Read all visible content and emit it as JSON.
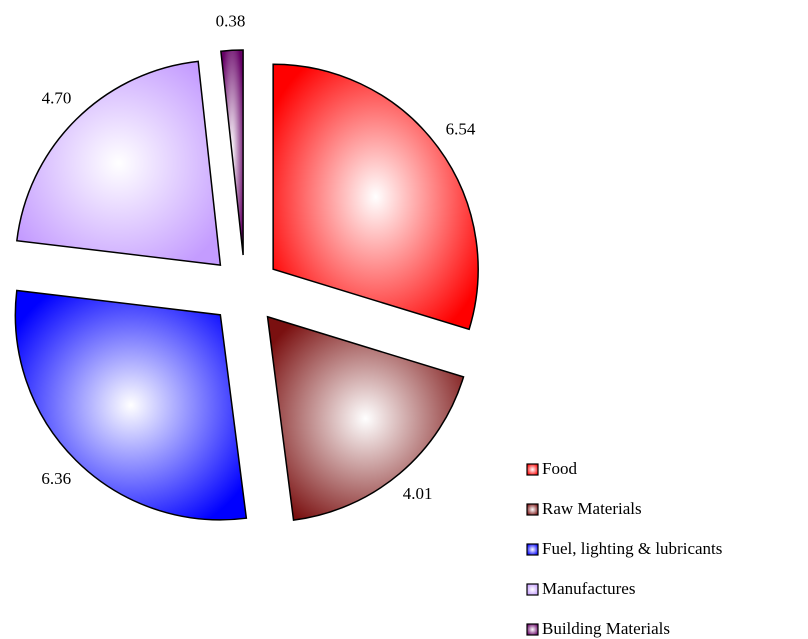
{
  "chart_data": {
    "type": "pie",
    "categories": [
      "Food",
      "Raw Materials",
      "Fuel, lighting & lubricants",
      "Manufactures",
      "Building Materials"
    ],
    "values": [
      6.54,
      4.01,
      6.36,
      4.7,
      0.38
    ],
    "value_labels": [
      "6.54",
      "4.01",
      "6.36",
      "4.70",
      "0.38"
    ],
    "colors": [
      "#ff0000",
      "#7a1010",
      "#0000ff",
      "#c49cff",
      "#660066"
    ],
    "legend": "bottom-right"
  }
}
